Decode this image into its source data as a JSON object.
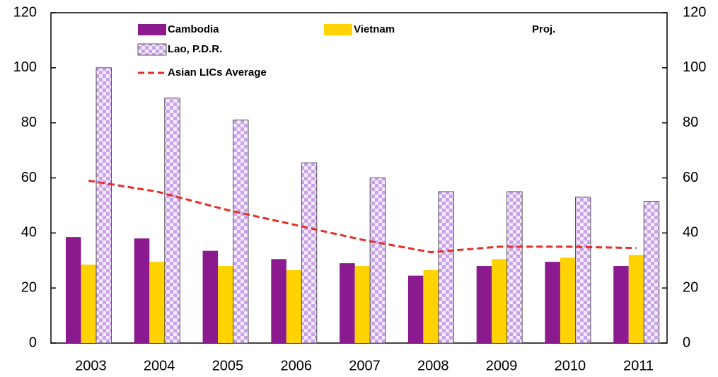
{
  "chart_data": {
    "type": "bar",
    "annotation": "Proj.",
    "categories": [
      "2003",
      "2004",
      "2005",
      "2006",
      "2007",
      "2008",
      "2009",
      "2010",
      "2011"
    ],
    "series": [
      {
        "name": "Cambodia",
        "color": "#8a1a8e",
        "values": [
          38.5,
          38,
          33.5,
          30.5,
          29,
          24.5,
          28,
          29.5,
          28
        ]
      },
      {
        "name": "Vietnam",
        "color": "#ffd200",
        "values": [
          28.5,
          29.5,
          28,
          26.5,
          28,
          26.5,
          30.5,
          31,
          32
        ]
      },
      {
        "name": "Lao, P.D.R.",
        "color": "#c9a3ea",
        "pattern": "checker",
        "values": [
          100,
          89,
          81,
          65.5,
          60,
          55,
          55,
          53,
          51.5
        ]
      },
      {
        "name": "Asian LICs Average",
        "color": "#e0302a",
        "type": "line",
        "dashed": true,
        "values": [
          59,
          55,
          48.5,
          43,
          37.5,
          33,
          35,
          35,
          34.5
        ]
      }
    ],
    "ylim": [
      0,
      120
    ],
    "yticks": [
      0,
      20,
      40,
      60,
      80,
      100,
      120
    ],
    "y2lim": [
      0,
      120
    ],
    "y2ticks": [
      0,
      20,
      40,
      60,
      80,
      100,
      120
    ]
  }
}
